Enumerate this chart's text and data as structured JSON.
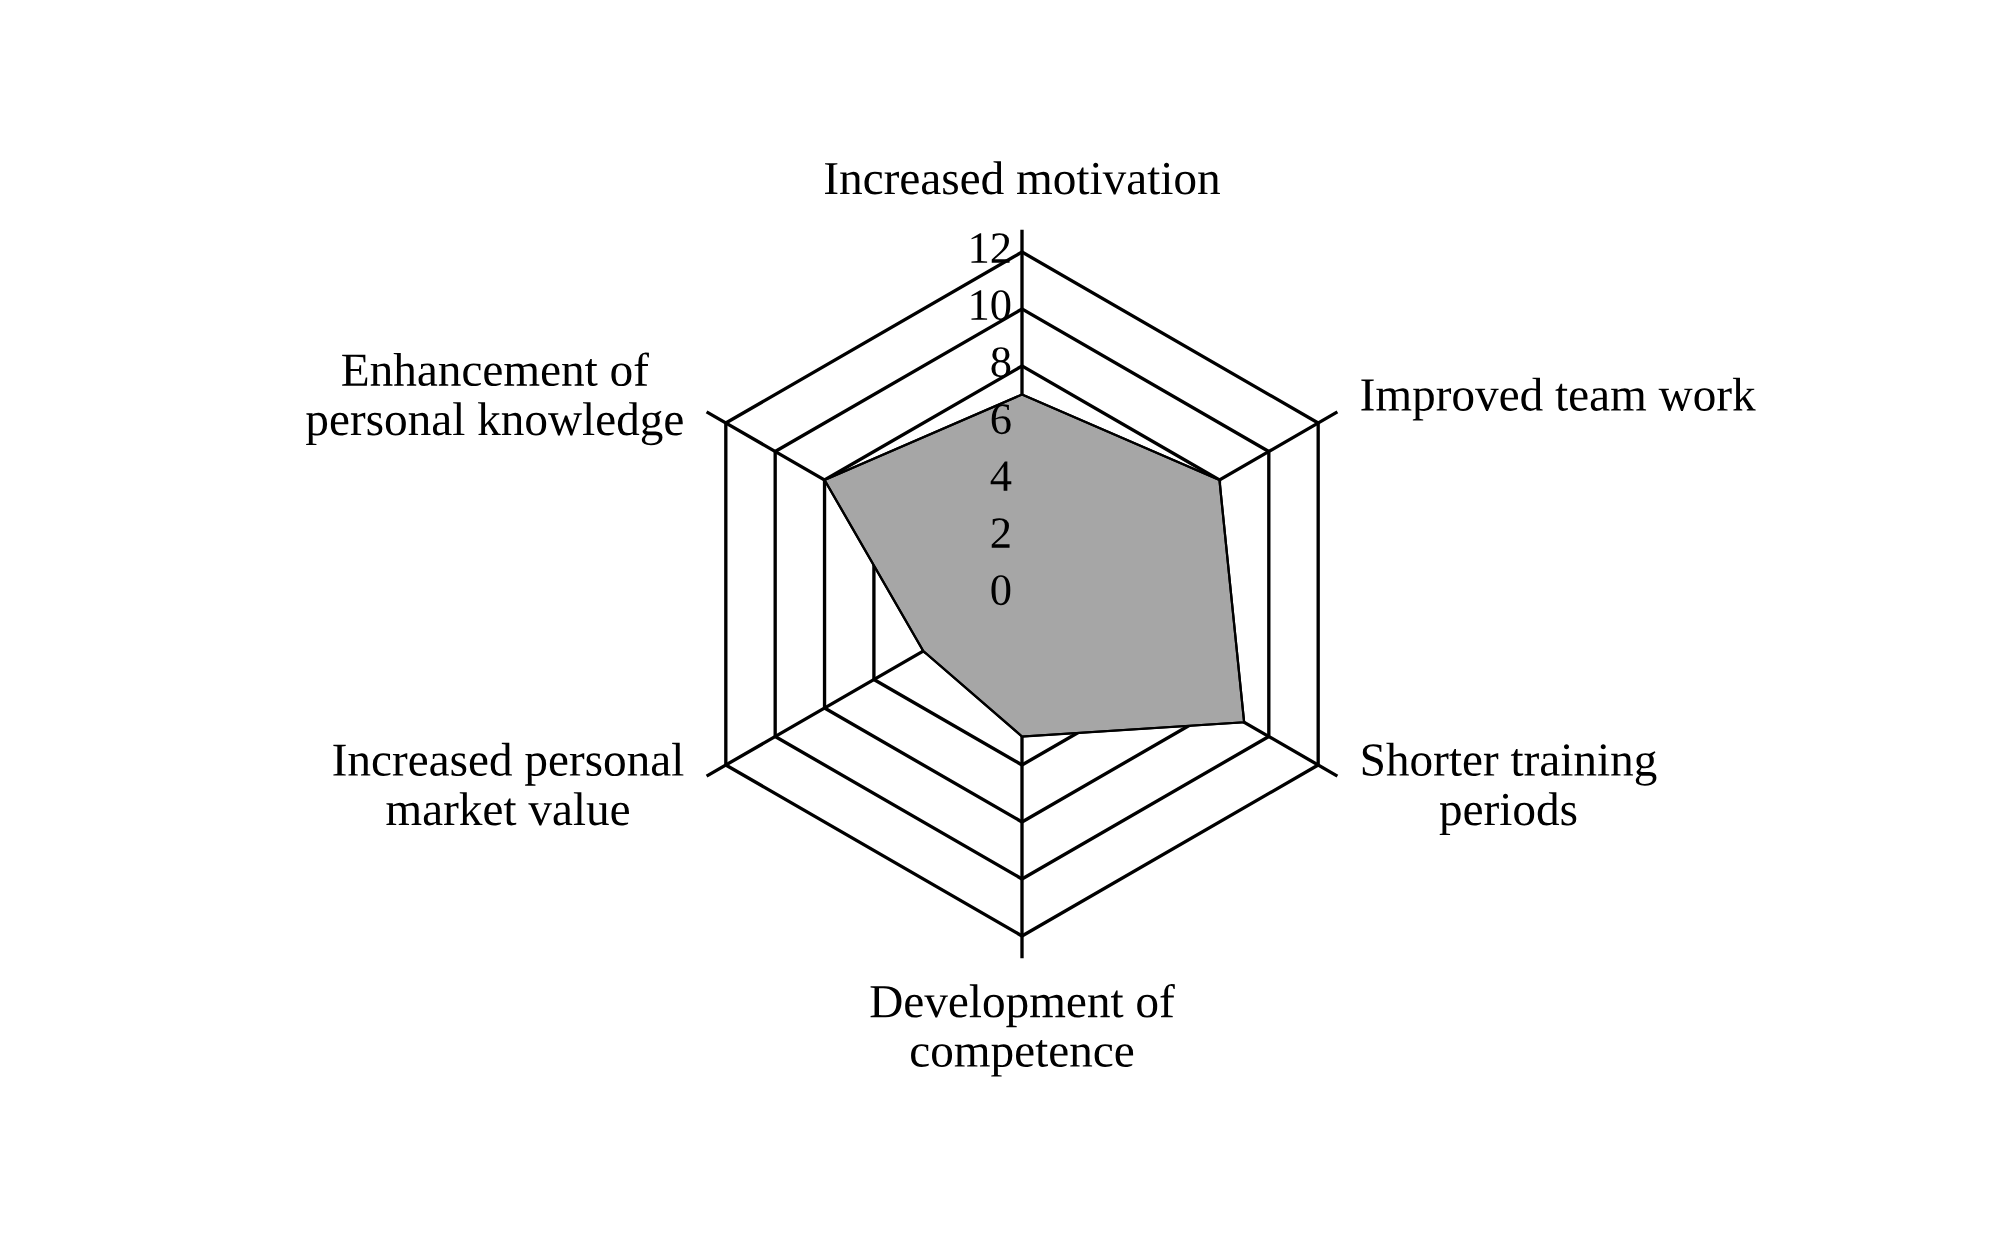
{
  "chart_data": {
    "type": "radar",
    "categories": [
      "Increased motivation",
      "Improved team work",
      "Shorter training\nperiods",
      "Development of\ncompetence",
      "Increased personal\nmarket value",
      "Enhancement of\npersonal knowledge"
    ],
    "series": [
      {
        "color": "#a6a6a6",
        "values": [
          7,
          8,
          9,
          5,
          4,
          8
        ]
      }
    ],
    "ylim": [
      0,
      12
    ],
    "yticks": [
      0,
      2,
      4,
      6,
      8,
      10,
      12
    ],
    "grid": true
  }
}
